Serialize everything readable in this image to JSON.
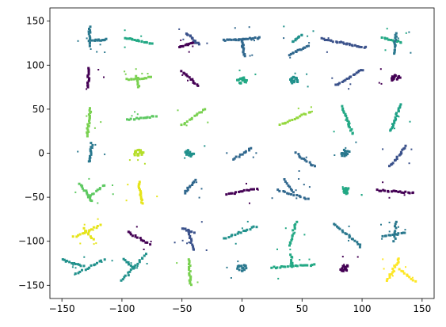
{
  "chart_data": {
    "type": "scatter",
    "title": "",
    "xlabel": "",
    "ylabel": "",
    "xlim": [
      -160,
      160
    ],
    "ylim": [
      -165,
      165
    ],
    "x_ticks": [
      -150,
      -100,
      -50,
      0,
      50,
      100,
      150
    ],
    "y_ticks": [
      -150,
      -100,
      -50,
      0,
      50,
      100,
      150
    ],
    "grid": false,
    "legend": "none",
    "colormap": "viridis",
    "point_clusters": [
      {
        "shape": "segment",
        "from": [
          -127,
          122
        ],
        "to": [
          -127,
          143
        ],
        "color": "#2a788e",
        "n": 14
      },
      {
        "shape": "segment",
        "from": [
          -125,
          128
        ],
        "to": [
          -113,
          129
        ],
        "color": "#2a788e",
        "n": 12
      },
      {
        "shape": "segment",
        "from": [
          -97,
          131
        ],
        "to": [
          -75,
          124
        ],
        "color": "#22a884",
        "n": 18
      },
      {
        "shape": "segment",
        "from": [
          -52,
          120
        ],
        "to": [
          -40,
          126
        ],
        "color": "#440154",
        "n": 14
      },
      {
        "shape": "segment",
        "from": [
          -46,
          136
        ],
        "to": [
          -36,
          124
        ],
        "color": "#3b528b",
        "n": 14
      },
      {
        "shape": "segment",
        "from": [
          -15,
          128
        ],
        "to": [
          15,
          131
        ],
        "color": "#31688e",
        "n": 24
      },
      {
        "shape": "segment",
        "from": [
          0,
          128
        ],
        "to": [
          2,
          110
        ],
        "color": "#31688e",
        "n": 14
      },
      {
        "shape": "segment",
        "from": [
          40,
          112
        ],
        "to": [
          55,
          122
        ],
        "color": "#31688e",
        "n": 14
      },
      {
        "shape": "segment",
        "from": [
          42,
          126
        ],
        "to": [
          50,
          135
        ],
        "color": "#21918c",
        "n": 10
      },
      {
        "shape": "segment",
        "from": [
          66,
          130
        ],
        "to": [
          103,
          120
        ],
        "color": "#3b528b",
        "n": 26
      },
      {
        "shape": "segment",
        "from": [
          117,
          131
        ],
        "to": [
          133,
          126
        ],
        "color": "#22a884",
        "n": 12
      },
      {
        "shape": "segment",
        "from": [
          127,
          113
        ],
        "to": [
          128,
          136
        ],
        "color": "#2a788e",
        "n": 14
      },
      {
        "shape": "segment",
        "from": [
          -128,
          75
        ],
        "to": [
          -128,
          97
        ],
        "color": "#440154",
        "n": 16
      },
      {
        "shape": "segment",
        "from": [
          -96,
          84
        ],
        "to": [
          -76,
          86
        ],
        "color": "#7ad151",
        "n": 14
      },
      {
        "shape": "segment",
        "from": [
          -88,
          87
        ],
        "to": [
          -86,
          75
        ],
        "color": "#7ad151",
        "n": 8
      },
      {
        "shape": "segment",
        "from": [
          -50,
          93
        ],
        "to": [
          -37,
          77
        ],
        "color": "#440154",
        "n": 14
      },
      {
        "shape": "blob",
        "center": [
          0,
          83
        ],
        "radius": 4,
        "color": "#22a884",
        "n": 20
      },
      {
        "shape": "blob",
        "center": [
          43,
          83
        ],
        "radius": 4,
        "color": "#21918c",
        "n": 20
      },
      {
        "shape": "segment",
        "from": [
          78,
          77
        ],
        "to": [
          100,
          95
        ],
        "color": "#3b528b",
        "n": 18
      },
      {
        "shape": "blob",
        "center": [
          128,
          85
        ],
        "radius": 4,
        "color": "#440154",
        "n": 18
      },
      {
        "shape": "segment",
        "from": [
          -129,
          20
        ],
        "to": [
          -126,
          51
        ],
        "color": "#7ad151",
        "n": 20
      },
      {
        "shape": "segment",
        "from": [
          -95,
          38
        ],
        "to": [
          -72,
          42
        ],
        "color": "#5ec962",
        "n": 16
      },
      {
        "shape": "segment",
        "from": [
          -50,
          32
        ],
        "to": [
          -31,
          50
        ],
        "color": "#7ad151",
        "n": 14
      },
      {
        "shape": "segment",
        "from": [
          32,
          32
        ],
        "to": [
          57,
          47
        ],
        "color": "#95d840",
        "n": 16
      },
      {
        "shape": "segment",
        "from": [
          83,
          53
        ],
        "to": [
          92,
          22
        ],
        "color": "#22a884",
        "n": 20
      },
      {
        "shape": "segment",
        "from": [
          124,
          25
        ],
        "to": [
          132,
          55
        ],
        "color": "#1fa187",
        "n": 20
      },
      {
        "shape": "segment",
        "from": [
          -127,
          -10
        ],
        "to": [
          -125,
          11
        ],
        "color": "#2a788e",
        "n": 14
      },
      {
        "shape": "blob",
        "center": [
          -86,
          0
        ],
        "radius": 4,
        "color": "#b5de2b",
        "n": 18
      },
      {
        "shape": "blob",
        "center": [
          -44,
          0
        ],
        "radius": 4,
        "color": "#21918c",
        "n": 18
      },
      {
        "shape": "segment",
        "from": [
          -7,
          -7
        ],
        "to": [
          8,
          6
        ],
        "color": "#31688e",
        "n": 12
      },
      {
        "shape": "segment",
        "from": [
          45,
          0
        ],
        "to": [
          60,
          -15
        ],
        "color": "#31688e",
        "n": 12
      },
      {
        "shape": "blob",
        "center": [
          86,
          0
        ],
        "radius": 4,
        "color": "#2a788e",
        "n": 16
      },
      {
        "shape": "segment",
        "from": [
          123,
          -15
        ],
        "to": [
          137,
          8
        ],
        "color": "#3b528b",
        "n": 16
      },
      {
        "shape": "segment",
        "from": [
          -135,
          -34
        ],
        "to": [
          -125,
          -54
        ],
        "color": "#5ec962",
        "n": 14
      },
      {
        "shape": "segment",
        "from": [
          -127,
          -50
        ],
        "to": [
          -115,
          -36
        ],
        "color": "#5ec962",
        "n": 10
      },
      {
        "shape": "segment",
        "from": [
          -86,
          -33
        ],
        "to": [
          -83,
          -57
        ],
        "color": "#e6e419",
        "n": 16
      },
      {
        "shape": "segment",
        "from": [
          -48,
          -45
        ],
        "to": [
          -39,
          -30
        ],
        "color": "#31688e",
        "n": 12
      },
      {
        "shape": "segment",
        "from": [
          -13,
          -47
        ],
        "to": [
          12,
          -40
        ],
        "color": "#440154",
        "n": 16
      },
      {
        "shape": "segment",
        "from": [
          30,
          -42
        ],
        "to": [
          55,
          -52
        ],
        "color": "#31688e",
        "n": 14
      },
      {
        "shape": "segment",
        "from": [
          35,
          -30
        ],
        "to": [
          43,
          -45
        ],
        "color": "#31688e",
        "n": 8
      },
      {
        "shape": "blob",
        "center": [
          87,
          -43
        ],
        "radius": 4,
        "color": "#22a884",
        "n": 16
      },
      {
        "shape": "segment",
        "from": [
          113,
          -42
        ],
        "to": [
          143,
          -45
        ],
        "color": "#440154",
        "n": 20
      },
      {
        "shape": "segment",
        "from": [
          -140,
          -95
        ],
        "to": [
          -118,
          -82
        ],
        "color": "#e6e419",
        "n": 14
      },
      {
        "shape": "segment",
        "from": [
          -132,
          -86
        ],
        "to": [
          -124,
          -98
        ],
        "color": "#e6e419",
        "n": 8
      },
      {
        "shape": "segment",
        "from": [
          -95,
          -90
        ],
        "to": [
          -77,
          -103
        ],
        "color": "#440154",
        "n": 14
      },
      {
        "shape": "segment",
        "from": [
          -50,
          -85
        ],
        "to": [
          -40,
          -90
        ],
        "color": "#3b528b",
        "n": 8
      },
      {
        "shape": "segment",
        "from": [
          -44,
          -88
        ],
        "to": [
          -41,
          -110
        ],
        "color": "#3b528b",
        "n": 12
      },
      {
        "shape": "segment",
        "from": [
          -15,
          -97
        ],
        "to": [
          12,
          -83
        ],
        "color": "#21918c",
        "n": 16
      },
      {
        "shape": "segment",
        "from": [
          45,
          -78
        ],
        "to": [
          40,
          -105
        ],
        "color": "#22a884",
        "n": 14
      },
      {
        "shape": "segment",
        "from": [
          77,
          -80
        ],
        "to": [
          99,
          -106
        ],
        "color": "#2a788e",
        "n": 18
      },
      {
        "shape": "segment",
        "from": [
          117,
          -95
        ],
        "to": [
          136,
          -90
        ],
        "color": "#2a788e",
        "n": 12
      },
      {
        "shape": "segment",
        "from": [
          128,
          -78
        ],
        "to": [
          127,
          -100
        ],
        "color": "#2a788e",
        "n": 10
      },
      {
        "shape": "segment",
        "from": [
          -150,
          -121
        ],
        "to": [
          -132,
          -128
        ],
        "color": "#21918c",
        "n": 12
      },
      {
        "shape": "segment",
        "from": [
          -138,
          -137
        ],
        "to": [
          -115,
          -121
        ],
        "color": "#21918c",
        "n": 14
      },
      {
        "shape": "segment",
        "from": [
          -100,
          -145
        ],
        "to": [
          -80,
          -115
        ],
        "color": "#21918c",
        "n": 18
      },
      {
        "shape": "segment",
        "from": [
          -99,
          -120
        ],
        "to": [
          -90,
          -131
        ],
        "color": "#21918c",
        "n": 8
      },
      {
        "shape": "segment",
        "from": [
          -44,
          -120
        ],
        "to": [
          -43,
          -150
        ],
        "color": "#7ad151",
        "n": 18
      },
      {
        "shape": "blob",
        "center": [
          0,
          -130
        ],
        "radius": 4,
        "color": "#2a788e",
        "n": 16
      },
      {
        "shape": "segment",
        "from": [
          25,
          -130
        ],
        "to": [
          60,
          -127
        ],
        "color": "#22a884",
        "n": 22
      },
      {
        "shape": "segment",
        "from": [
          42,
          -129
        ],
        "to": [
          41,
          -115
        ],
        "color": "#22a884",
        "n": 8
      },
      {
        "shape": "blob",
        "center": [
          85,
          -130
        ],
        "radius": 4,
        "color": "#440154",
        "n": 16
      },
      {
        "shape": "segment",
        "from": [
          121,
          -145
        ],
        "to": [
          131,
          -120
        ],
        "color": "#fde725",
        "n": 16
      },
      {
        "shape": "segment",
        "from": [
          131,
          -132
        ],
        "to": [
          144,
          -145
        ],
        "color": "#fde725",
        "n": 10
      }
    ]
  }
}
